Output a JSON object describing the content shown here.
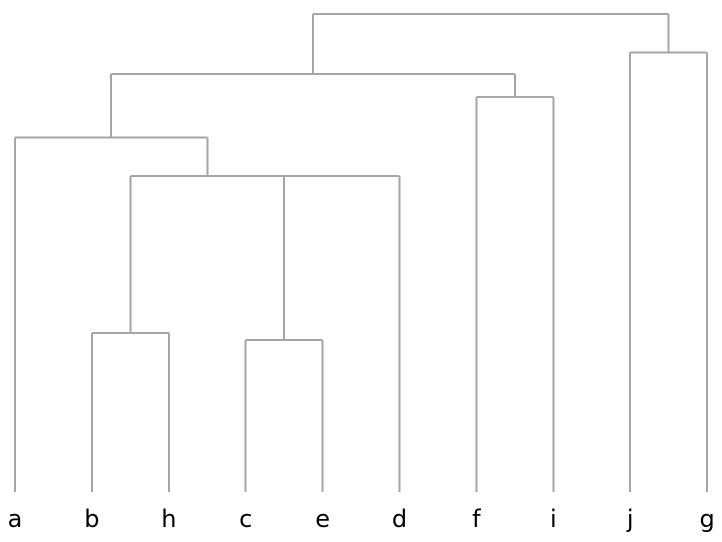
{
  "diagram": {
    "type": "dendrogram",
    "leaves": [
      "a",
      "b",
      "h",
      "c",
      "e",
      "d",
      "f",
      "i",
      "j",
      "g"
    ],
    "line_color": "#a6a6a6",
    "label_color": "#000000",
    "merges": [
      {
        "id": "m1",
        "children": [
          "b",
          "h"
        ],
        "height": 0.333
      },
      {
        "id": "m2",
        "children": [
          "c",
          "e"
        ],
        "height": 0.318
      },
      {
        "id": "m3",
        "children": [
          "m1",
          "m2",
          "d"
        ],
        "height": 0.661
      },
      {
        "id": "m4",
        "children": [
          "a",
          "m3"
        ],
        "height": 0.742
      },
      {
        "id": "m5",
        "children": [
          "f",
          "i"
        ],
        "height": 0.826
      },
      {
        "id": "m6",
        "children": [
          "m4",
          "m5"
        ],
        "height": 0.874
      },
      {
        "id": "m7",
        "children": [
          "j",
          "g"
        ],
        "height": 0.919
      },
      {
        "id": "m8",
        "children": [
          "m6",
          "m7"
        ],
        "height": 1.0
      }
    ]
  }
}
